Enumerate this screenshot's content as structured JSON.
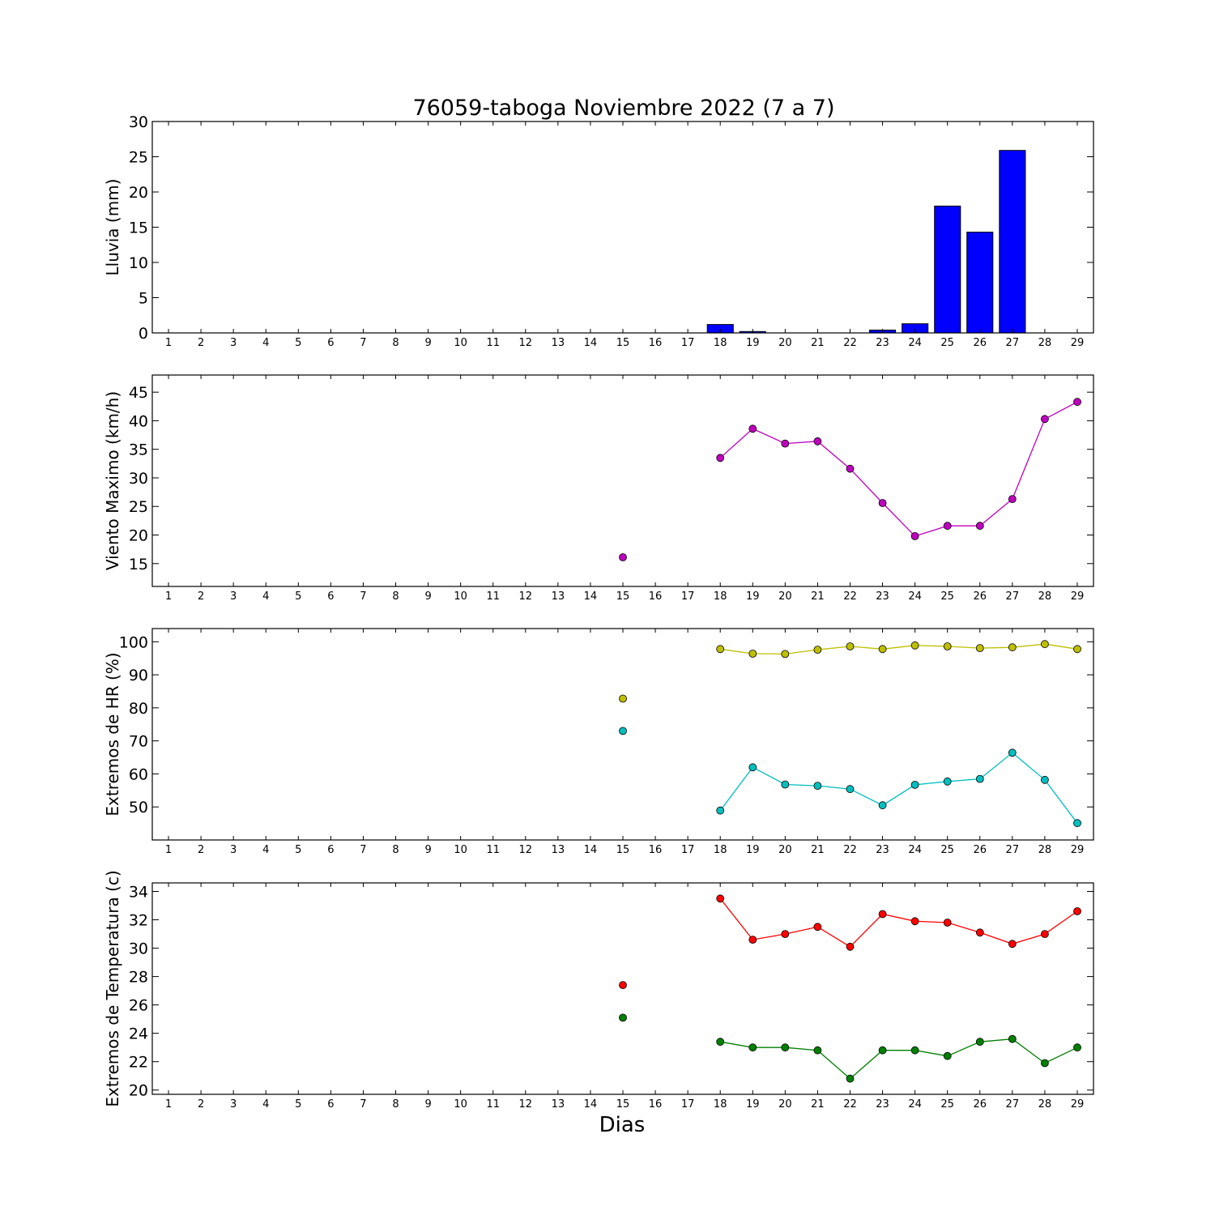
{
  "title": "76059-taboga Noviembre 2022  (7 a 7)",
  "xlabel": "Dias",
  "chart_data": [
    {
      "type": "bar",
      "ylabel": "Lluvia (mm)",
      "ylim": [
        0,
        30
      ],
      "yticks": [
        0,
        5,
        10,
        15,
        20,
        25,
        30
      ],
      "x": [
        1,
        2,
        3,
        4,
        5,
        6,
        7,
        8,
        9,
        10,
        11,
        12,
        13,
        14,
        15,
        16,
        17,
        18,
        19,
        20,
        21,
        22,
        23,
        24,
        25,
        26,
        27,
        28,
        29
      ],
      "series": [
        {
          "color": "#0000ff",
          "values": [
            null,
            null,
            null,
            null,
            null,
            null,
            null,
            null,
            null,
            null,
            null,
            null,
            null,
            null,
            0,
            0,
            0,
            1.2,
            0.2,
            0,
            0,
            0,
            0.4,
            1.3,
            18.0,
            14.3,
            25.9,
            0,
            0
          ]
        }
      ]
    },
    {
      "type": "line",
      "ylabel": "Viento Maximo (km/h)",
      "ylim": [
        11,
        48
      ],
      "yticks": [
        15,
        20,
        25,
        30,
        35,
        40,
        45
      ],
      "x": [
        1,
        2,
        3,
        4,
        5,
        6,
        7,
        8,
        9,
        10,
        11,
        12,
        13,
        14,
        15,
        16,
        17,
        18,
        19,
        20,
        21,
        22,
        23,
        24,
        25,
        26,
        27,
        28,
        29
      ],
      "series": [
        {
          "color": "#bf00bf",
          "values": [
            null,
            null,
            null,
            null,
            null,
            null,
            null,
            null,
            null,
            null,
            null,
            null,
            null,
            null,
            16.1,
            null,
            null,
            33.5,
            38.6,
            36.0,
            36.4,
            31.6,
            25.6,
            19.8,
            21.6,
            21.6,
            26.3,
            40.3,
            43.3
          ]
        }
      ]
    },
    {
      "type": "line",
      "ylabel": "Extremos de HR (%)",
      "ylim": [
        40,
        104
      ],
      "yticks": [
        50,
        60,
        70,
        80,
        90,
        100
      ],
      "x": [
        1,
        2,
        3,
        4,
        5,
        6,
        7,
        8,
        9,
        10,
        11,
        12,
        13,
        14,
        15,
        16,
        17,
        18,
        19,
        20,
        21,
        22,
        23,
        24,
        25,
        26,
        27,
        28,
        29
      ],
      "series": [
        {
          "color": "#bfbf00",
          "values": [
            null,
            null,
            null,
            null,
            null,
            null,
            null,
            null,
            null,
            null,
            null,
            null,
            null,
            null,
            82.8,
            null,
            null,
            97.8,
            96.4,
            96.3,
            97.6,
            98.6,
            97.8,
            98.9,
            98.6,
            98.1,
            98.3,
            99.3,
            97.8
          ]
        },
        {
          "color": "#00bfbf",
          "values": [
            null,
            null,
            null,
            null,
            null,
            null,
            null,
            null,
            null,
            null,
            null,
            null,
            null,
            null,
            73.0,
            null,
            null,
            48.9,
            62.0,
            56.8,
            56.4,
            55.4,
            50.5,
            56.7,
            57.7,
            58.5,
            66.4,
            58.2,
            45.1
          ]
        }
      ]
    },
    {
      "type": "line",
      "ylabel": "Extremos de Temperatura (c)",
      "ylim": [
        19.7,
        34.6
      ],
      "yticks": [
        20,
        22,
        24,
        26,
        28,
        30,
        32,
        34
      ],
      "x": [
        1,
        2,
        3,
        4,
        5,
        6,
        7,
        8,
        9,
        10,
        11,
        12,
        13,
        14,
        15,
        16,
        17,
        18,
        19,
        20,
        21,
        22,
        23,
        24,
        25,
        26,
        27,
        28,
        29
      ],
      "series": [
        {
          "color": "#ff0000",
          "values": [
            null,
            null,
            null,
            null,
            null,
            null,
            null,
            null,
            null,
            null,
            null,
            null,
            null,
            null,
            27.4,
            null,
            null,
            33.5,
            30.6,
            31.0,
            31.5,
            30.1,
            32.4,
            31.9,
            31.8,
            31.1,
            30.3,
            31.0,
            32.6
          ]
        },
        {
          "color": "#008000",
          "values": [
            null,
            null,
            null,
            null,
            null,
            null,
            null,
            null,
            null,
            null,
            null,
            null,
            null,
            null,
            25.1,
            null,
            null,
            23.4,
            23.0,
            23.0,
            22.8,
            20.8,
            22.8,
            22.8,
            22.4,
            23.4,
            23.6,
            21.9,
            23.0
          ]
        }
      ]
    }
  ]
}
